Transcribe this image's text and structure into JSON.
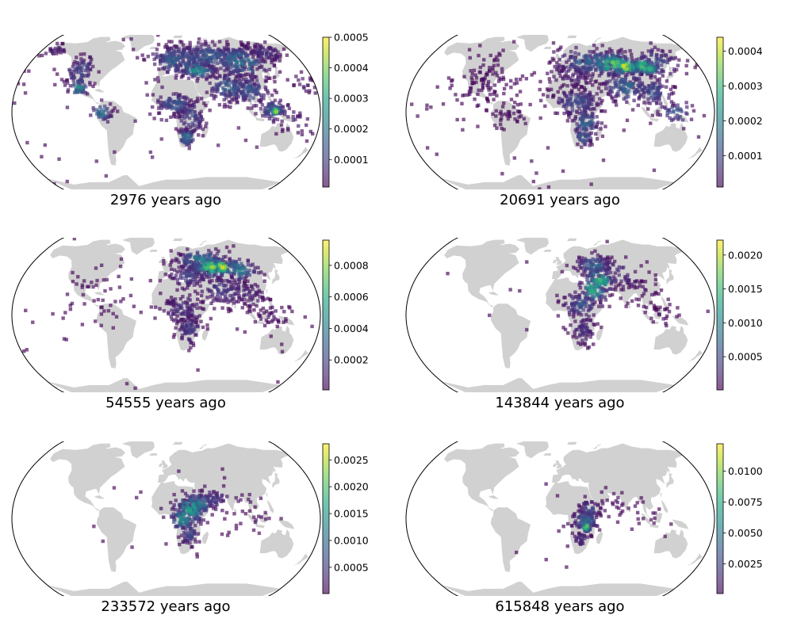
{
  "chart_data": [
    {
      "type": "scatter",
      "title": "2976 years ago",
      "colorbar": {
        "colormap": "viridis",
        "ticks": [
          "0.0001",
          "0.0002",
          "0.0003",
          "0.0004",
          "0.0005"
        ],
        "range": [
          1e-05,
          0.0005
        ]
      },
      "clusters": [
        {
          "lon": 15,
          "lat": 52,
          "spread": [
            20,
            8
          ],
          "n": 170,
          "level": 0.35
        },
        {
          "lon": 60,
          "lat": 55,
          "spread": [
            30,
            8
          ],
          "n": 200,
          "level": 0.3
        },
        {
          "lon": 100,
          "lat": 50,
          "spread": [
            20,
            9
          ],
          "n": 160,
          "level": 0.4
        },
        {
          "lon": 140,
          "lat": 60,
          "spread": [
            15,
            6
          ],
          "n": 80,
          "level": 0.15
        },
        {
          "lon": 40,
          "lat": 42,
          "spread": [
            12,
            5
          ],
          "n": 90,
          "level": 0.5
        },
        {
          "lon": 75,
          "lat": 25,
          "spread": [
            12,
            8
          ],
          "n": 110,
          "level": 0.35
        },
        {
          "lon": 100,
          "lat": 22,
          "spread": [
            12,
            8
          ],
          "n": 110,
          "level": 0.3
        },
        {
          "lon": 10,
          "lat": 8,
          "spread": [
            12,
            6
          ],
          "n": 90,
          "level": 0.3
        },
        {
          "lon": 30,
          "lat": -5,
          "spread": [
            9,
            9
          ],
          "n": 90,
          "level": 0.25
        },
        {
          "lon": 25,
          "lat": -25,
          "spread": [
            6,
            5
          ],
          "n": 50,
          "level": 0.4
        },
        {
          "lon": 125,
          "lat": 2,
          "spread": [
            10,
            6
          ],
          "n": 70,
          "level": 0.3
        },
        {
          "lon": 128,
          "lat": 1,
          "spread": [
            3,
            2
          ],
          "n": 25,
          "level": 0.95
        },
        {
          "lon": -110,
          "lat": 40,
          "spread": [
            10,
            8
          ],
          "n": 80,
          "level": 0.25
        },
        {
          "lon": -105,
          "lat": 25,
          "spread": [
            6,
            5
          ],
          "n": 40,
          "level": 0.5
        },
        {
          "lon": -75,
          "lat": 0,
          "spread": [
            6,
            5
          ],
          "n": 40,
          "level": 0.45
        },
        {
          "lon": -160,
          "lat": 62,
          "spread": [
            8,
            4
          ],
          "n": 25,
          "level": 0.1
        },
        {
          "lon": 150,
          "lat": -10,
          "spread": [
            10,
            6
          ],
          "n": 20,
          "level": 0.1
        },
        {
          "lon": 170,
          "lat": 30,
          "spread": [
            8,
            6
          ],
          "n": 25,
          "level": 0.1
        },
        {
          "lon": 0,
          "lat": 0,
          "spread": [
            110,
            40
          ],
          "n": 60,
          "level": 0.05
        }
      ]
    },
    {
      "type": "scatter",
      "title": "20691 years ago",
      "colorbar": {
        "colormap": "viridis",
        "ticks": [
          "0.0001",
          "0.0002",
          "0.0003",
          "0.0004"
        ],
        "range": [
          1e-05,
          0.00044
        ]
      },
      "clusters": [
        {
          "lon": 40,
          "lat": 50,
          "spread": [
            25,
            8
          ],
          "n": 150,
          "level": 0.35
        },
        {
          "lon": 70,
          "lat": 48,
          "spread": [
            18,
            6
          ],
          "n": 150,
          "level": 0.75
        },
        {
          "lon": 85,
          "lat": 45,
          "spread": [
            8,
            4
          ],
          "n": 50,
          "level": 0.95
        },
        {
          "lon": 110,
          "lat": 45,
          "spread": [
            10,
            5
          ],
          "n": 80,
          "level": 0.75
        },
        {
          "lon": 130,
          "lat": 50,
          "spread": [
            15,
            8
          ],
          "n": 80,
          "level": 0.25
        },
        {
          "lon": 80,
          "lat": 25,
          "spread": [
            15,
            8
          ],
          "n": 120,
          "level": 0.35
        },
        {
          "lon": 110,
          "lat": 20,
          "spread": [
            12,
            8
          ],
          "n": 90,
          "level": 0.25
        },
        {
          "lon": 15,
          "lat": 35,
          "spread": [
            18,
            8
          ],
          "n": 90,
          "level": 0.1
        },
        {
          "lon": 20,
          "lat": 10,
          "spread": [
            15,
            8
          ],
          "n": 140,
          "level": 0.25
        },
        {
          "lon": 30,
          "lat": -10,
          "spread": [
            8,
            8
          ],
          "n": 80,
          "level": 0.35
        },
        {
          "lon": 28,
          "lat": -25,
          "spread": [
            5,
            4
          ],
          "n": 30,
          "level": 0.45
        },
        {
          "lon": 135,
          "lat": 0,
          "spread": [
            10,
            6
          ],
          "n": 40,
          "level": 0.3
        },
        {
          "lon": -90,
          "lat": 30,
          "spread": [
            22,
            15
          ],
          "n": 120,
          "level": 0.03
        },
        {
          "lon": -55,
          "lat": -5,
          "spread": [
            10,
            8
          ],
          "n": 35,
          "level": 0.03
        },
        {
          "lon": 0,
          "lat": 0,
          "spread": [
            120,
            40
          ],
          "n": 50,
          "level": 0.02
        }
      ]
    },
    {
      "type": "scatter",
      "title": "54555 years ago",
      "colorbar": {
        "colormap": "viridis",
        "ticks": [
          "0.0002",
          "0.0004",
          "0.0006",
          "0.0008"
        ],
        "range": [
          1e-05,
          0.00096
        ]
      },
      "clusters": [
        {
          "lon": 50,
          "lat": 55,
          "spread": [
            18,
            6
          ],
          "n": 120,
          "level": 0.45
        },
        {
          "lon": 60,
          "lat": 48,
          "spread": [
            12,
            5
          ],
          "n": 100,
          "level": 0.85
        },
        {
          "lon": 75,
          "lat": 48,
          "spread": [
            8,
            4
          ],
          "n": 50,
          "level": 0.95
        },
        {
          "lon": 95,
          "lat": 45,
          "spread": [
            12,
            6
          ],
          "n": 80,
          "level": 0.45
        },
        {
          "lon": 30,
          "lat": 40,
          "spread": [
            15,
            8
          ],
          "n": 100,
          "level": 0.2
        },
        {
          "lon": 70,
          "lat": 25,
          "spread": [
            15,
            8
          ],
          "n": 100,
          "level": 0.2
        },
        {
          "lon": 100,
          "lat": 20,
          "spread": [
            12,
            8
          ],
          "n": 60,
          "level": 0.1
        },
        {
          "lon": 20,
          "lat": 5,
          "spread": [
            15,
            8
          ],
          "n": 110,
          "level": 0.15
        },
        {
          "lon": 28,
          "lat": -15,
          "spread": [
            7,
            8
          ],
          "n": 70,
          "level": 0.2
        },
        {
          "lon": 125,
          "lat": 0,
          "spread": [
            12,
            6
          ],
          "n": 40,
          "level": 0.05
        },
        {
          "lon": -80,
          "lat": 20,
          "spread": [
            25,
            20
          ],
          "n": 40,
          "level": 0.02
        },
        {
          "lon": 0,
          "lat": 0,
          "spread": [
            120,
            40
          ],
          "n": 50,
          "level": 0.02
        }
      ]
    },
    {
      "type": "scatter",
      "title": "143844 years ago",
      "colorbar": {
        "colormap": "viridis",
        "ticks": [
          "0.0005",
          "0.0010",
          "0.0015",
          "0.0020"
        ],
        "range": [
          1e-05,
          0.00222
        ]
      },
      "clusters": [
        {
          "lon": 45,
          "lat": 50,
          "spread": [
            12,
            6
          ],
          "n": 90,
          "level": 0.35
        },
        {
          "lon": 50,
          "lat": 35,
          "spread": [
            10,
            6
          ],
          "n": 70,
          "level": 0.65
        },
        {
          "lon": 40,
          "lat": 25,
          "spread": [
            8,
            6
          ],
          "n": 60,
          "level": 0.7
        },
        {
          "lon": 70,
          "lat": 40,
          "spread": [
            15,
            8
          ],
          "n": 60,
          "level": 0.2
        },
        {
          "lon": 25,
          "lat": 10,
          "spread": [
            12,
            8
          ],
          "n": 90,
          "level": 0.25
        },
        {
          "lon": 28,
          "lat": -15,
          "spread": [
            7,
            8
          ],
          "n": 60,
          "level": 0.15
        },
        {
          "lon": 100,
          "lat": 25,
          "spread": [
            15,
            10
          ],
          "n": 40,
          "level": 0.05
        },
        {
          "lon": 120,
          "lat": 0,
          "spread": [
            12,
            6
          ],
          "n": 25,
          "level": 0.03
        },
        {
          "lon": 0,
          "lat": 0,
          "spread": [
            90,
            35
          ],
          "n": 20,
          "level": 0.02
        }
      ]
    },
    {
      "type": "scatter",
      "title": "233572 years ago",
      "colorbar": {
        "colormap": "viridis",
        "ticks": [
          "0.0005",
          "0.0010",
          "0.0015",
          "0.0020",
          "0.0025"
        ],
        "range": [
          1e-05,
          0.0028
        ]
      },
      "clusters": [
        {
          "lon": 30,
          "lat": 10,
          "spread": [
            10,
            7
          ],
          "n": 110,
          "level": 0.6
        },
        {
          "lon": 20,
          "lat": 0,
          "spread": [
            8,
            6
          ],
          "n": 70,
          "level": 0.55
        },
        {
          "lon": 40,
          "lat": 15,
          "spread": [
            8,
            6
          ],
          "n": 60,
          "level": 0.45
        },
        {
          "lon": 28,
          "lat": -15,
          "spread": [
            6,
            6
          ],
          "n": 50,
          "level": 0.25
        },
        {
          "lon": 55,
          "lat": 20,
          "spread": [
            10,
            6
          ],
          "n": 40,
          "level": 0.2
        },
        {
          "lon": 80,
          "lat": 20,
          "spread": [
            15,
            10
          ],
          "n": 25,
          "level": 0.05
        },
        {
          "lon": 105,
          "lat": -5,
          "spread": [
            15,
            8
          ],
          "n": 15,
          "level": 0.03
        },
        {
          "lon": 0,
          "lat": 0,
          "spread": [
            60,
            30
          ],
          "n": 12,
          "level": 0.02
        }
      ]
    },
    {
      "type": "scatter",
      "title": "615848 years ago",
      "colorbar": {
        "colormap": "viridis",
        "ticks": [
          "0.0025",
          "0.0050",
          "0.0075",
          "0.0100"
        ],
        "range": [
          0.0001,
          0.0122
        ]
      },
      "clusters": [
        {
          "lon": 30,
          "lat": -2,
          "spread": [
            8,
            6
          ],
          "n": 100,
          "level": 0.35
        },
        {
          "lon": 30,
          "lat": -8,
          "spread": [
            3,
            3
          ],
          "n": 25,
          "level": 0.85
        },
        {
          "lon": 35,
          "lat": 10,
          "spread": [
            7,
            5
          ],
          "n": 40,
          "level": 0.25
        },
        {
          "lon": 25,
          "lat": -20,
          "spread": [
            6,
            5
          ],
          "n": 30,
          "level": 0.15
        },
        {
          "lon": 65,
          "lat": 15,
          "spread": [
            15,
            8
          ],
          "n": 25,
          "level": 0.05
        },
        {
          "lon": 100,
          "lat": 0,
          "spread": [
            15,
            8
          ],
          "n": 15,
          "level": 0.03
        },
        {
          "lon": 0,
          "lat": 0,
          "spread": [
            50,
            25
          ],
          "n": 8,
          "level": 0.02
        }
      ]
    }
  ],
  "colors": {
    "land": "#d1d1d1",
    "ocean": "#ffffff",
    "outline": "#000000"
  }
}
